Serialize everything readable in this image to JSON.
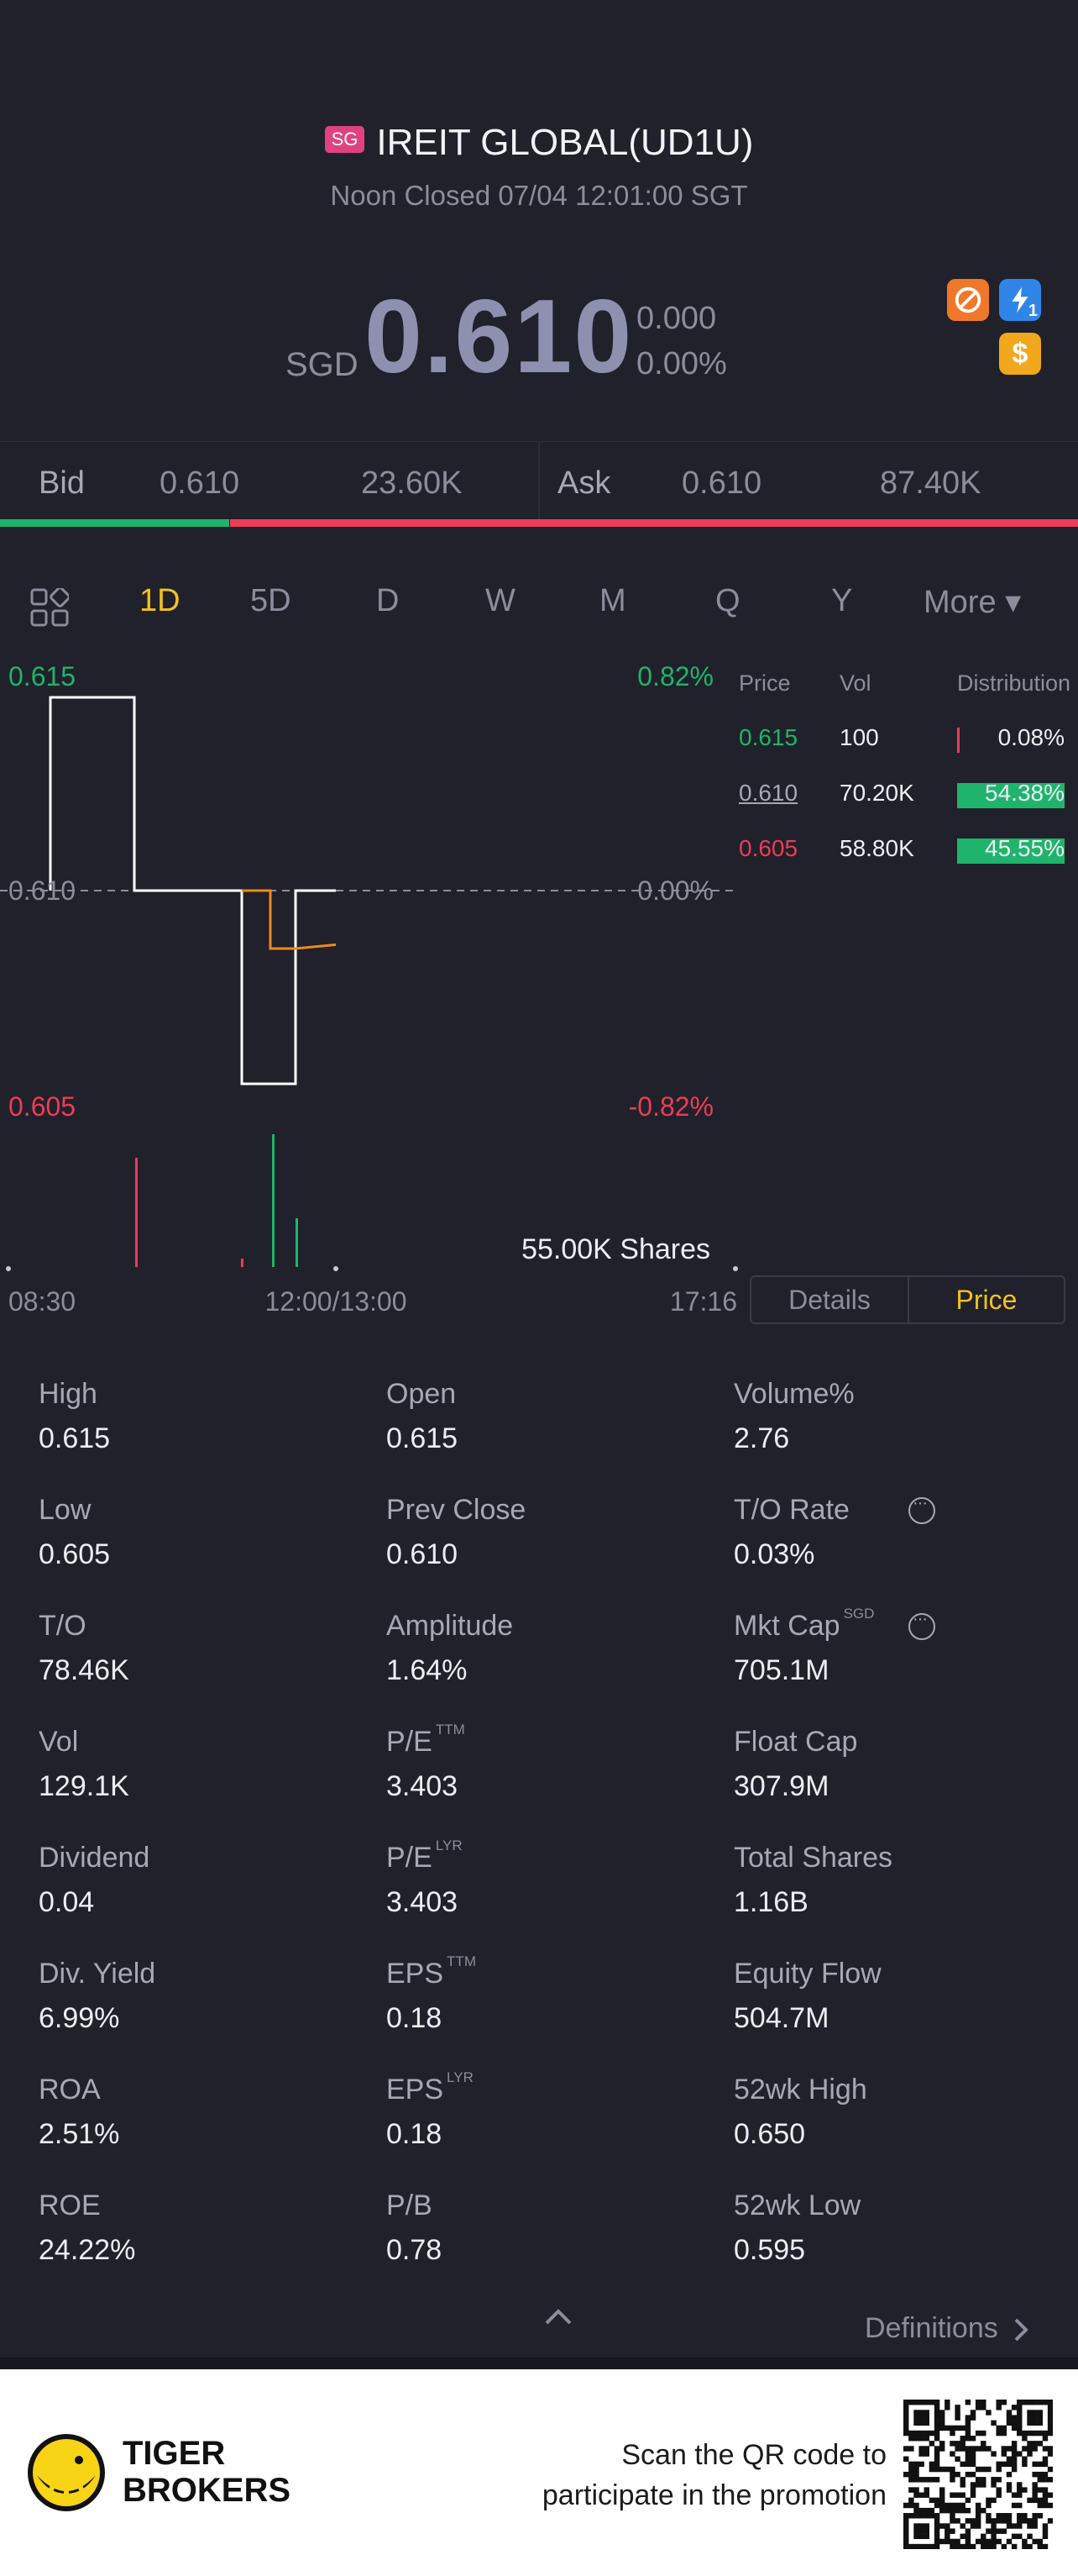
{
  "header": {
    "market_badge": "SG",
    "title": "IREIT GLOBAL(UD1U)",
    "status": "Noon Closed 07/04 12:01:00 SGT"
  },
  "quote": {
    "currency": "SGD",
    "price": "0.610",
    "change": "0.000",
    "change_pct": "0.00%",
    "badge_margin": "$",
    "badge_flash_count": "1"
  },
  "bid_ask": {
    "bid_label": "Bid",
    "bid_price": "0.610",
    "bid_size": "23.60K",
    "ask_label": "Ask",
    "ask_price": "0.610",
    "ask_size": "87.40K",
    "bid_share": 0.213
  },
  "tabs": [
    {
      "label": "1D",
      "active": true
    },
    {
      "label": "5D"
    },
    {
      "label": "D"
    },
    {
      "label": "W"
    },
    {
      "label": "M"
    },
    {
      "label": "Q"
    },
    {
      "label": "Y"
    },
    {
      "label": "More ▾"
    }
  ],
  "chart_data": {
    "type": "line",
    "y_high": "0.615",
    "y_high_pct": "0.82%",
    "y_mid": "0.610",
    "y_mid_pct": "0.00%",
    "y_low": "0.605",
    "y_low_pct": "-0.82%",
    "ylim": [
      0.605,
      0.615
    ],
    "x_labels": [
      "08:30",
      "12:00/13:00",
      "17:16"
    ],
    "volume_label": "55.00K Shares",
    "price_series": [
      0.61,
      0.615,
      0.615,
      0.61,
      0.61,
      0.61,
      0.605,
      0.605,
      0.61,
      0.61
    ],
    "avg_series": [
      0.61,
      0.61,
      0.6095,
      0.6085,
      0.6085,
      0.6086
    ]
  },
  "distribution": {
    "headers": [
      "Price",
      "Vol",
      "Distribution"
    ],
    "rows": [
      {
        "price": "0.615",
        "vol": "100",
        "pct": "0.08%",
        "share": 0.0008
      },
      {
        "price": "0.610",
        "vol": "70.20K",
        "pct": "54.38%",
        "share": 0.5438
      },
      {
        "price": "0.605",
        "vol": "58.80K",
        "pct": "45.55%",
        "share": 0.4555
      }
    ]
  },
  "view_toggle": {
    "details": "Details",
    "price": "Price"
  },
  "stats": [
    [
      {
        "label": "High",
        "value": "0.615"
      },
      {
        "label": "Open",
        "value": "0.615"
      },
      {
        "label": "Volume%",
        "value": "2.76"
      }
    ],
    [
      {
        "label": "Low",
        "value": "0.605"
      },
      {
        "label": "Prev Close",
        "value": "0.610"
      },
      {
        "label": "T/O Rate",
        "value": "0.03%",
        "info": true
      }
    ],
    [
      {
        "label": "T/O",
        "value": "78.46K"
      },
      {
        "label": "Amplitude",
        "value": "1.64%"
      },
      {
        "label": "Mkt Cap",
        "sup": "SGD",
        "value": "705.1M",
        "info": true
      }
    ],
    [
      {
        "label": "Vol",
        "value": "129.1K"
      },
      {
        "label": "P/E",
        "sup": "TTM",
        "value": "3.403"
      },
      {
        "label": "Float Cap",
        "value": "307.9M"
      }
    ],
    [
      {
        "label": "Dividend",
        "value": "0.04"
      },
      {
        "label": "P/E",
        "sup": "LYR",
        "value": "3.403"
      },
      {
        "label": "Total Shares",
        "value": "1.16B"
      }
    ],
    [
      {
        "label": "Div. Yield",
        "value": "6.99%"
      },
      {
        "label": "EPS",
        "sup": "TTM",
        "value": "0.18"
      },
      {
        "label": "Equity Flow",
        "value": "504.7M"
      }
    ],
    [
      {
        "label": "ROA",
        "value": "2.51%"
      },
      {
        "label": "EPS",
        "sup": "LYR",
        "value": "0.18"
      },
      {
        "label": "52wk High",
        "value": "0.650"
      }
    ],
    [
      {
        "label": "ROE",
        "value": "24.22%"
      },
      {
        "label": "P/B",
        "value": "0.78"
      },
      {
        "label": "52wk Low",
        "value": "0.595"
      }
    ]
  ],
  "definitions": "Definitions",
  "promo": {
    "brand_line1": "TIGER",
    "brand_line2": "BROKERS",
    "line1": "Scan the QR code to",
    "line2": "participate in the promotion"
  },
  "colors": {
    "up": "#1fb46b",
    "down": "#ef3b56",
    "accent": "#f3c21c",
    "avg_line": "#ee8a1b"
  }
}
